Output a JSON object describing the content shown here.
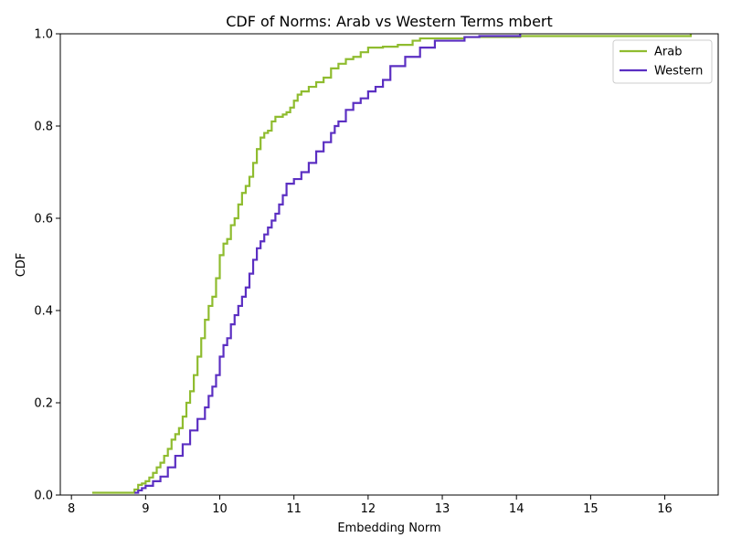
{
  "chart_data": {
    "type": "line",
    "title": "CDF of Norms: Arab vs Western Terms mbert",
    "xlabel": "Embedding Norm",
    "ylabel": "CDF",
    "xlim": [
      7.85,
      16.72
    ],
    "ylim": [
      0.0,
      1.0
    ],
    "xticks": [
      8,
      9,
      10,
      11,
      12,
      13,
      14,
      15,
      16
    ],
    "yticks": [
      0.0,
      0.2,
      0.4,
      0.6,
      0.8,
      1.0
    ],
    "xtick_labels": [
      "8",
      "9",
      "10",
      "11",
      "12",
      "13",
      "14",
      "15",
      "16"
    ],
    "ytick_labels": [
      "0.0",
      "0.2",
      "0.4",
      "0.6",
      "0.8",
      "1.0"
    ],
    "grid": false,
    "legend_position": "top-right",
    "series": [
      {
        "name": "Arab",
        "color": "#8fbc2f",
        "x": [
          8.28,
          8.85,
          8.9,
          8.95,
          9.0,
          9.05,
          9.1,
          9.15,
          9.2,
          9.25,
          9.3,
          9.35,
          9.4,
          9.45,
          9.5,
          9.55,
          9.6,
          9.65,
          9.7,
          9.75,
          9.8,
          9.85,
          9.9,
          9.95,
          10.0,
          10.05,
          10.1,
          10.15,
          10.2,
          10.25,
          10.3,
          10.35,
          10.4,
          10.45,
          10.5,
          10.55,
          10.6,
          10.65,
          10.7,
          10.75,
          10.8,
          10.85,
          10.9,
          10.95,
          11.0,
          11.05,
          11.1,
          11.2,
          11.3,
          11.4,
          11.5,
          11.6,
          11.7,
          11.8,
          11.9,
          12.0,
          12.2,
          12.4,
          12.6,
          12.7,
          12.9,
          13.1,
          13.3,
          13.5,
          13.8,
          14.05,
          16.35
        ],
        "y": [
          0.005,
          0.012,
          0.022,
          0.025,
          0.03,
          0.038,
          0.048,
          0.06,
          0.07,
          0.085,
          0.1,
          0.12,
          0.132,
          0.145,
          0.17,
          0.2,
          0.225,
          0.26,
          0.3,
          0.34,
          0.38,
          0.41,
          0.43,
          0.47,
          0.52,
          0.545,
          0.555,
          0.585,
          0.6,
          0.63,
          0.655,
          0.67,
          0.69,
          0.72,
          0.75,
          0.775,
          0.785,
          0.79,
          0.81,
          0.82,
          0.82,
          0.825,
          0.83,
          0.84,
          0.855,
          0.868,
          0.875,
          0.885,
          0.895,
          0.905,
          0.925,
          0.935,
          0.945,
          0.95,
          0.96,
          0.97,
          0.972,
          0.976,
          0.985,
          0.99,
          0.99,
          0.99,
          0.993,
          0.993,
          0.993,
          0.995,
          1.0
        ]
      },
      {
        "name": "Western",
        "color": "#5b2fc2",
        "x": [
          8.85,
          8.9,
          8.95,
          9.0,
          9.1,
          9.2,
          9.3,
          9.4,
          9.5,
          9.6,
          9.7,
          9.8,
          9.85,
          9.9,
          9.95,
          10.0,
          10.05,
          10.1,
          10.15,
          10.2,
          10.25,
          10.3,
          10.35,
          10.4,
          10.45,
          10.5,
          10.55,
          10.6,
          10.65,
          10.7,
          10.75,
          10.8,
          10.85,
          10.9,
          11.0,
          11.1,
          11.2,
          11.3,
          11.4,
          11.5,
          11.55,
          11.6,
          11.7,
          11.8,
          11.9,
          12.0,
          12.1,
          12.2,
          12.3,
          12.5,
          12.7,
          12.9,
          13.3,
          13.5,
          14.05
        ],
        "y": [
          0.005,
          0.01,
          0.015,
          0.02,
          0.03,
          0.04,
          0.06,
          0.085,
          0.11,
          0.14,
          0.165,
          0.19,
          0.215,
          0.235,
          0.26,
          0.3,
          0.325,
          0.34,
          0.37,
          0.39,
          0.41,
          0.43,
          0.45,
          0.48,
          0.51,
          0.535,
          0.55,
          0.565,
          0.58,
          0.595,
          0.61,
          0.63,
          0.65,
          0.675,
          0.685,
          0.7,
          0.72,
          0.745,
          0.765,
          0.785,
          0.8,
          0.81,
          0.835,
          0.85,
          0.86,
          0.875,
          0.885,
          0.9,
          0.93,
          0.95,
          0.97,
          0.985,
          0.993,
          0.995,
          1.0
        ]
      }
    ]
  }
}
